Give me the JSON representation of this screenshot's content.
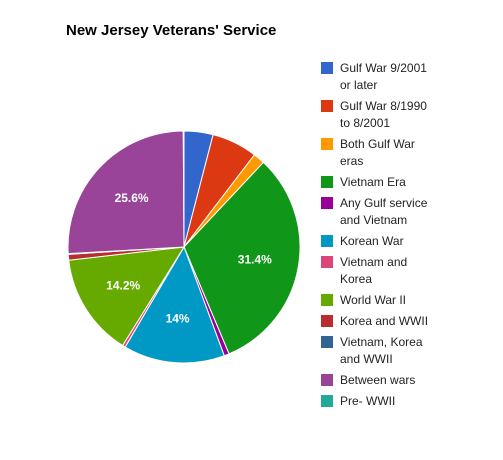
{
  "chart_data": {
    "type": "pie",
    "title": "New Jersey Veterans' Service",
    "legend_position": "right",
    "slices": [
      {
        "name": "Gulf War 9/2001 or later",
        "value": 4.0,
        "color": "#3366cc",
        "label": ""
      },
      {
        "name": "Gulf War 8/1990 to 8/2001",
        "value": 6.3,
        "color": "#dc3912",
        "label": ""
      },
      {
        "name": "Both Gulf War eras",
        "value": 1.6,
        "color": "#ff9900",
        "label": ""
      },
      {
        "name": "Vietnam Era",
        "value": 31.4,
        "color": "#109618",
        "label": "31.4%"
      },
      {
        "name": "Any Gulf service and Vietnam",
        "value": 0.7,
        "color": "#990099",
        "label": ""
      },
      {
        "name": "Korean War",
        "value": 14.0,
        "color": "#0099c6",
        "label": "14%"
      },
      {
        "name": "Vietnam and Korea",
        "value": 0.4,
        "color": "#dd4477",
        "label": ""
      },
      {
        "name": "World War II",
        "value": 14.2,
        "color": "#66aa00",
        "label": "14.2%"
      },
      {
        "name": "Korea and WWII",
        "value": 0.8,
        "color": "#b82e2e",
        "label": ""
      },
      {
        "name": "Vietnam, Korea and WWII",
        "value": 0.1,
        "color": "#316395",
        "label": ""
      },
      {
        "name": "Between wars",
        "value": 25.6,
        "color": "#994499",
        "label": "25.6%"
      },
      {
        "name": "Pre- WWII",
        "value": 0.1,
        "color": "#22aa99",
        "label": ""
      }
    ]
  },
  "legend": [
    {
      "line1": "Gulf War 9/2001",
      "line2": "or later"
    },
    {
      "line1": "Gulf War 8/1990",
      "line2": "to 8/2001"
    },
    {
      "line1": "Both Gulf War",
      "line2": "eras"
    },
    {
      "line1": "Vietnam Era",
      "line2": ""
    },
    {
      "line1": "Any Gulf service",
      "line2": "and Vietnam"
    },
    {
      "line1": "Korean War",
      "line2": ""
    },
    {
      "line1": "Vietnam and",
      "line2": "Korea"
    },
    {
      "line1": "World War II",
      "line2": ""
    },
    {
      "line1": "Korea and WWII",
      "line2": ""
    },
    {
      "line1": "Vietnam, Korea",
      "line2": "and WWII"
    },
    {
      "line1": "Between wars",
      "line2": ""
    },
    {
      "line1": "Pre- WWII",
      "line2": ""
    }
  ]
}
